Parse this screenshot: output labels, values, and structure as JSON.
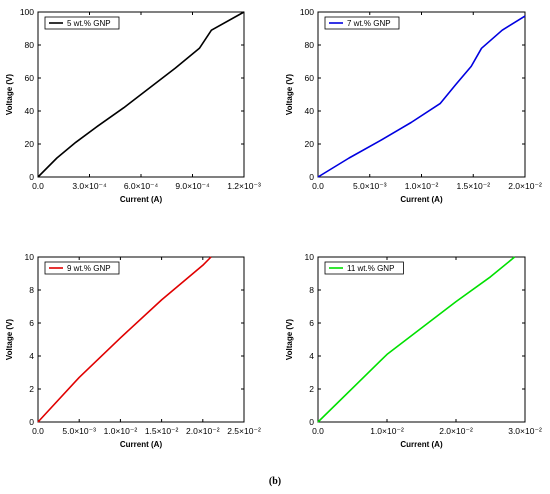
{
  "caption": "(b)",
  "chart_data": [
    {
      "type": "line",
      "xlabel": "Current (A)",
      "ylabel": "Voltage (V)",
      "xlim": [
        0,
        0.0012
      ],
      "ylim": [
        0,
        100
      ],
      "x_ticks": [
        0,
        0.0003,
        0.0006,
        0.0009,
        0.0012
      ],
      "x_tick_labels": [
        "0.0",
        "3.0×10⁻⁴",
        "6.0×10⁻⁴",
        "9.0×10⁻⁴",
        "1.2×10⁻³"
      ],
      "y_ticks": [
        0,
        20,
        40,
        60,
        80,
        100
      ],
      "y_tick_labels": [
        "0",
        "20",
        "40",
        "60",
        "80",
        "100"
      ],
      "legend_position": "top-left",
      "series": [
        {
          "name": "5 wt.% GNP",
          "color": "#000000",
          "x": [
            0,
            0.00011,
            0.00022,
            0.00035,
            0.0005,
            0.00065,
            0.0008,
            0.00094,
            0.00101,
            0.0012
          ],
          "y": [
            0,
            11.5,
            21,
            31,
            42,
            54,
            66,
            78,
            89,
            100
          ]
        }
      ]
    },
    {
      "type": "line",
      "xlabel": "Current (A)",
      "ylabel": "Voltage (V)",
      "xlim": [
        0,
        0.02
      ],
      "ylim": [
        0,
        100
      ],
      "x_ticks": [
        0,
        0.005,
        0.01,
        0.015,
        0.02
      ],
      "x_tick_labels": [
        "0.0",
        "5.0×10⁻³",
        "1.0×10⁻²",
        "1.5×10⁻²",
        "2.0×10⁻²"
      ],
      "y_ticks": [
        0,
        20,
        40,
        60,
        80,
        100
      ],
      "y_tick_labels": [
        "0",
        "20",
        "40",
        "60",
        "80",
        "100"
      ],
      "legend_position": "top-left",
      "series": [
        {
          "name": "7 wt.% GNP",
          "color": "#0000e0",
          "x": [
            0,
            0.003,
            0.006,
            0.009,
            0.0118,
            0.0133,
            0.0148,
            0.0158,
            0.0178,
            0.02
          ],
          "y": [
            0,
            11.5,
            22,
            33,
            44.5,
            56,
            67,
            78,
            89,
            97.5
          ]
        }
      ]
    },
    {
      "type": "line",
      "xlabel": "Current (A)",
      "ylabel": "Voltage (V)",
      "xlim": [
        0,
        0.025
      ],
      "ylim": [
        0,
        10
      ],
      "x_ticks": [
        0,
        0.005,
        0.01,
        0.015,
        0.02,
        0.025
      ],
      "x_tick_labels": [
        "0.0",
        "5.0×10⁻³",
        "1.0×10⁻²",
        "1.5×10⁻²",
        "2.0×10⁻²",
        "2.5×10⁻²"
      ],
      "y_ticks": [
        0,
        2,
        4,
        6,
        8,
        10
      ],
      "y_tick_labels": [
        "0",
        "2",
        "4",
        "6",
        "8",
        "10"
      ],
      "legend_position": "top-left",
      "series": [
        {
          "name": "9 wt.% GNP",
          "color": "#e00000",
          "x": [
            0,
            0.005,
            0.01,
            0.015,
            0.02,
            0.021
          ],
          "y": [
            0,
            2.7,
            5.1,
            7.4,
            9.5,
            10
          ]
        }
      ]
    },
    {
      "type": "line",
      "xlabel": "Current (A)",
      "ylabel": "Voltage (V)",
      "xlim": [
        0,
        0.03
      ],
      "ylim": [
        0,
        10
      ],
      "x_ticks": [
        0,
        0.01,
        0.02,
        0.03
      ],
      "x_tick_labels": [
        "0.0",
        "1.0×10⁻²",
        "2.0×10⁻²",
        "3.0×10⁻²"
      ],
      "y_ticks": [
        0,
        2,
        4,
        6,
        8,
        10
      ],
      "y_tick_labels": [
        "0",
        "2",
        "4",
        "6",
        "8",
        "10"
      ],
      "legend_position": "top-left",
      "series": [
        {
          "name": "11 wt.% GNP",
          "color": "#00e000",
          "x": [
            0,
            0.01,
            0.02,
            0.025,
            0.0285
          ],
          "y": [
            0,
            4.1,
            7.3,
            8.8,
            10
          ]
        }
      ]
    }
  ]
}
